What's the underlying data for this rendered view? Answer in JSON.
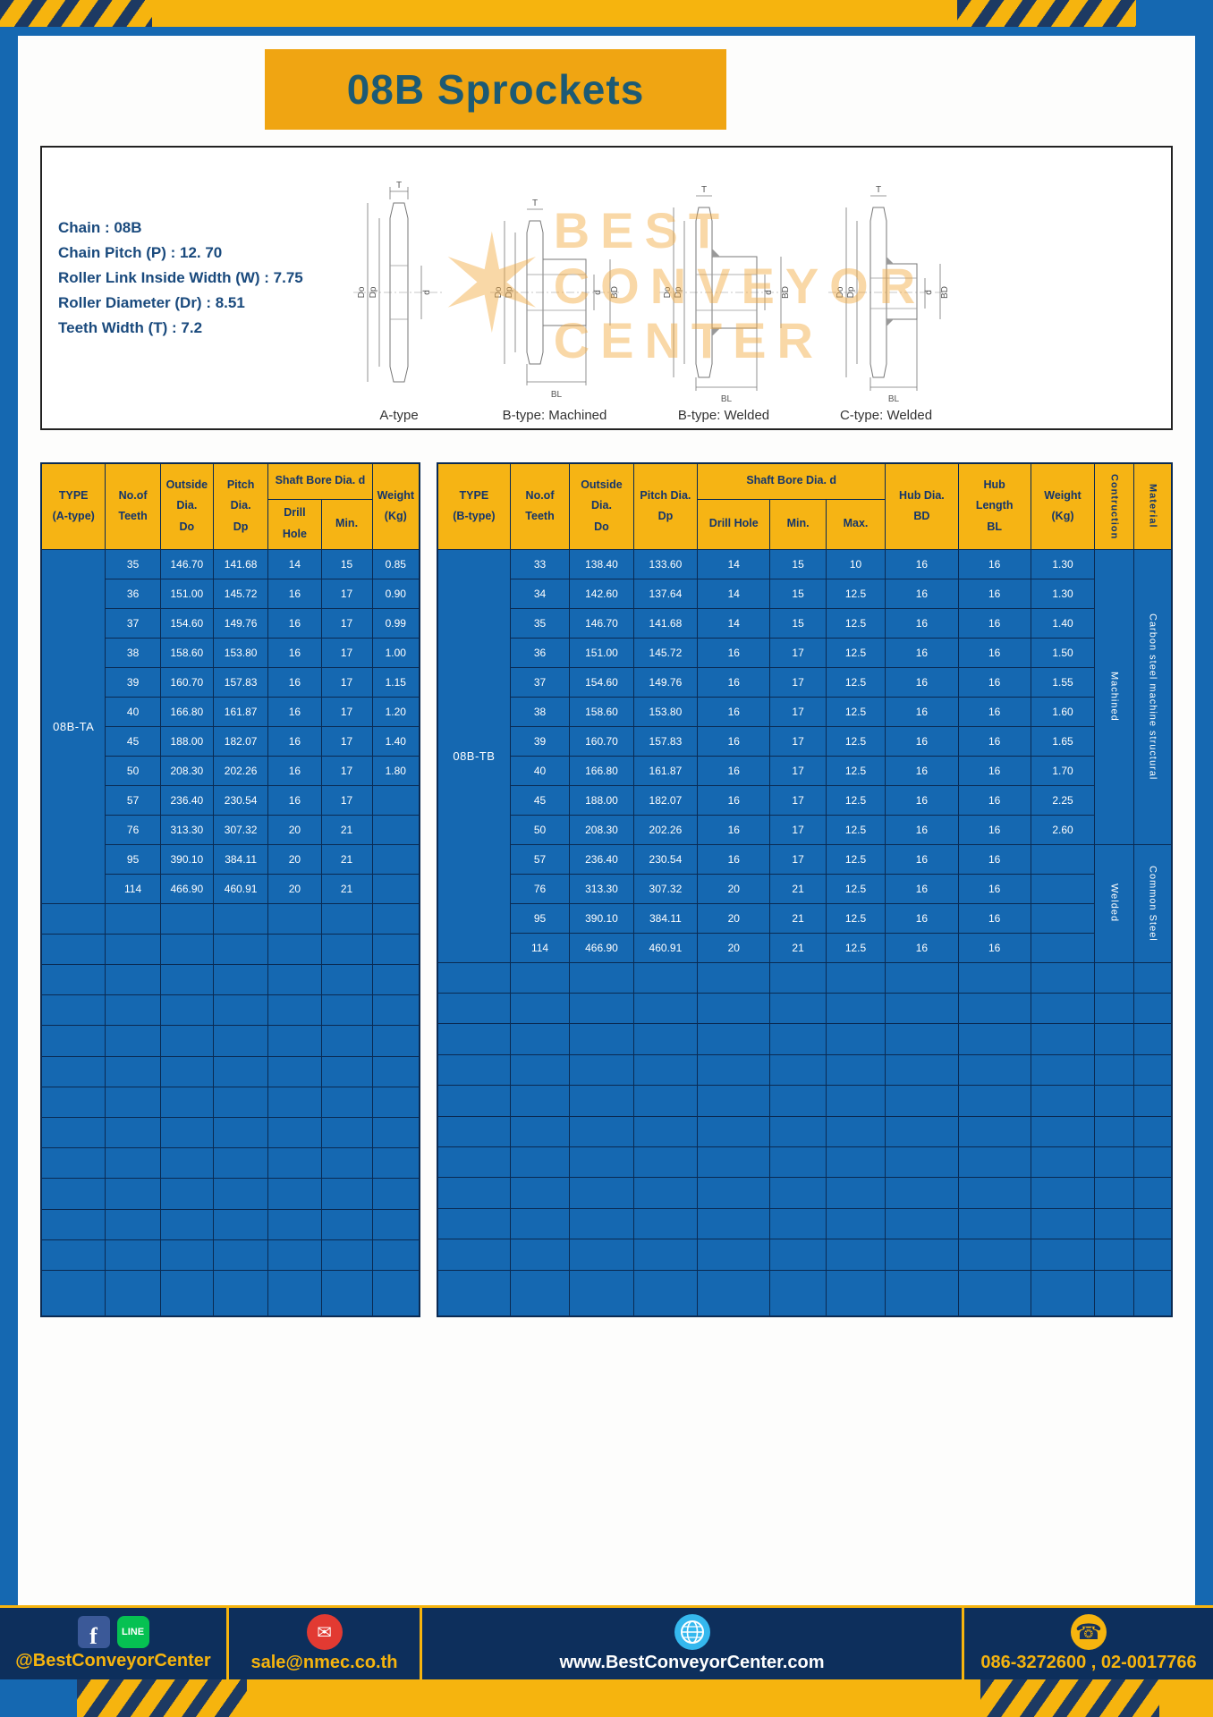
{
  "page_title": "08B Sprockets",
  "specs": {
    "lines": [
      "Chain : 08B",
      "Chain Pitch (P) : 12. 70",
      "Roller Link Inside Width (W) : 7.75",
      "Roller Diameter (Dr) : 8.51",
      "Teeth Width (T) : 7.2"
    ]
  },
  "diagram": {
    "watermark_lines": [
      "BEST",
      "CONVEYOR",
      "CENTER"
    ],
    "types": [
      "A-type",
      "B-type: Machined",
      "B-type: Welded",
      "C-type: Welded"
    ],
    "dims": {
      "T": "T",
      "Do": "Do",
      "Dp": "Dp",
      "d": "d",
      "BD": "BD",
      "BL": "BL"
    }
  },
  "table_a": {
    "headers": {
      "type": "TYPE\n(A-type)",
      "teeth": "No.of\nTeeth",
      "outside": "Outside\nDia.\nDo",
      "pitch": "Pitch Dia.\nDp",
      "shaft_bore": "Shaft Bore Dia. d",
      "drill": "Drill Hole",
      "min": "Min.",
      "weight": "Weight\n(Kg)"
    },
    "type_label": "08B-TA",
    "rows": [
      [
        "35",
        "146.70",
        "141.68",
        "14",
        "15",
        "0.85"
      ],
      [
        "36",
        "151.00",
        "145.72",
        "16",
        "17",
        "0.90"
      ],
      [
        "37",
        "154.60",
        "149.76",
        "16",
        "17",
        "0.99"
      ],
      [
        "38",
        "158.60",
        "153.80",
        "16",
        "17",
        "1.00"
      ],
      [
        "39",
        "160.70",
        "157.83",
        "16",
        "17",
        "1.15"
      ],
      [
        "40",
        "166.80",
        "161.87",
        "16",
        "17",
        "1.20"
      ],
      [
        "45",
        "188.00",
        "182.07",
        "16",
        "17",
        "1.40"
      ],
      [
        "50",
        "208.30",
        "202.26",
        "16",
        "17",
        "1.80"
      ],
      [
        "57",
        "236.40",
        "230.54",
        "16",
        "17",
        ""
      ],
      [
        "76",
        "313.30",
        "307.32",
        "20",
        "21",
        ""
      ],
      [
        "95",
        "390.10",
        "384.11",
        "20",
        "21",
        ""
      ],
      [
        "114",
        "466.90",
        "460.91",
        "20",
        "21",
        ""
      ]
    ],
    "empty_rows": 13
  },
  "table_b": {
    "headers": {
      "type": "TYPE\n(B-type)",
      "teeth": "No.of\nTeeth",
      "outside": "Outside\nDia.\nDo",
      "pitch": "Pitch Dia.\nDp",
      "shaft_bore": "Shaft Bore Dia. d",
      "drill": "Drill Hole",
      "min": "Min.",
      "max": "Max.",
      "hub_dia": "Hub Dia.\nBD",
      "hub_len": "Hub\nLength\nBL",
      "weight": "Weight\n(Kg)",
      "construction": "Contruction",
      "material": "Material"
    },
    "type_label": "08B-TB",
    "rows": [
      [
        "33",
        "138.40",
        "133.60",
        "14",
        "15",
        "10",
        "16",
        "16",
        "1.30"
      ],
      [
        "34",
        "142.60",
        "137.64",
        "14",
        "15",
        "12.5",
        "16",
        "16",
        "1.30"
      ],
      [
        "35",
        "146.70",
        "141.68",
        "14",
        "15",
        "12.5",
        "16",
        "16",
        "1.40"
      ],
      [
        "36",
        "151.00",
        "145.72",
        "16",
        "17",
        "12.5",
        "16",
        "16",
        "1.50"
      ],
      [
        "37",
        "154.60",
        "149.76",
        "16",
        "17",
        "12.5",
        "16",
        "16",
        "1.55"
      ],
      [
        "38",
        "158.60",
        "153.80",
        "16",
        "17",
        "12.5",
        "16",
        "16",
        "1.60"
      ],
      [
        "39",
        "160.70",
        "157.83",
        "16",
        "17",
        "12.5",
        "16",
        "16",
        "1.65"
      ],
      [
        "40",
        "166.80",
        "161.87",
        "16",
        "17",
        "12.5",
        "16",
        "16",
        "1.70"
      ],
      [
        "45",
        "188.00",
        "182.07",
        "16",
        "17",
        "12.5",
        "16",
        "16",
        "2.25"
      ],
      [
        "50",
        "208.30",
        "202.26",
        "16",
        "17",
        "12.5",
        "16",
        "16",
        "2.60"
      ],
      [
        "57",
        "236.40",
        "230.54",
        "16",
        "17",
        "12.5",
        "16",
        "16",
        ""
      ],
      [
        "76",
        "313.30",
        "307.32",
        "20",
        "21",
        "12.5",
        "16",
        "16",
        ""
      ],
      [
        "95",
        "390.10",
        "384.11",
        "20",
        "21",
        "12.5",
        "16",
        "16",
        ""
      ],
      [
        "114",
        "466.90",
        "460.91",
        "20",
        "21",
        "12.5",
        "16",
        "16",
        ""
      ]
    ],
    "construction_spans": [
      {
        "text": "Machined",
        "start": 0,
        "len": 10
      },
      {
        "text": "Welded",
        "start": 10,
        "len": 4
      }
    ],
    "material_spans": [
      {
        "text": "Carbon steel  machine structural",
        "start": 0,
        "len": 10
      },
      {
        "text": "Common  Steel",
        "start": 10,
        "len": 4
      }
    ],
    "empty_rows": 11
  },
  "footer": {
    "facebook_glyph": "f",
    "line_label": "LINE",
    "social_handle": "@BestConveyorCenter",
    "email_glyph": "✉",
    "email": "sale@nmec.co.th",
    "website": "www.BestConveyorCenter.com",
    "phone_glyph": "☎",
    "phones": "086-3272600 , 02-0017766"
  }
}
